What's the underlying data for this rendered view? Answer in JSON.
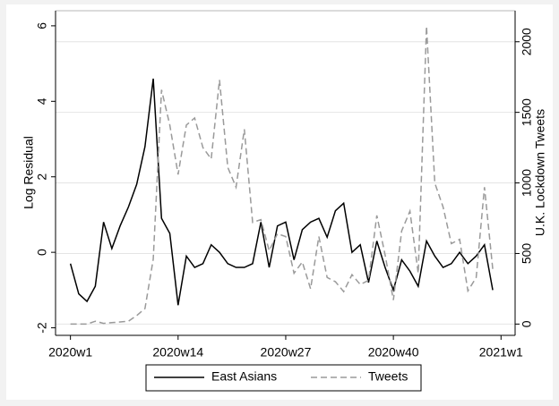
{
  "chart_data": {
    "type": "line",
    "x": [
      1,
      2,
      3,
      4,
      5,
      6,
      7,
      8,
      9,
      10,
      11,
      12,
      13,
      14,
      15,
      16,
      17,
      18,
      19,
      20,
      21,
      22,
      23,
      24,
      25,
      26,
      27,
      28,
      29,
      30,
      31,
      32,
      33,
      34,
      35,
      36,
      37,
      38,
      39,
      40,
      41,
      42,
      43,
      44,
      45,
      46,
      47,
      48,
      49,
      50,
      51,
      52
    ],
    "xlim": [
      -0.8,
      54.7
    ],
    "xticks": [
      {
        "value": 1,
        "label": "2020w1"
      },
      {
        "value": 14,
        "label": "2020w14"
      },
      {
        "value": 27,
        "label": "2020w27"
      },
      {
        "value": 40,
        "label": "2020w40"
      },
      {
        "value": 53,
        "label": "2021w1"
      }
    ],
    "y_label": "Log Residual",
    "y2_label": "U.K. Lockdown Tweets",
    "ylim": [
      -2.2,
      6.4
    ],
    "yticks": [
      -2,
      0,
      2,
      4,
      6
    ],
    "y2lim": [
      -80,
      2220
    ],
    "y2ticks": [
      0,
      500,
      1000,
      1500,
      2000
    ],
    "grid": "y2",
    "legend": "bottom",
    "series": [
      {
        "name": "East Asians",
        "color": "#000000",
        "dash": false,
        "values": [
          -0.3,
          -1.1,
          -1.3,
          -0.9,
          0.8,
          0.1,
          0.7,
          1.2,
          1.8,
          2.8,
          4.6,
          0.9,
          0.5,
          -1.4,
          -0.1,
          -0.4,
          -0.3,
          0.2,
          0.0,
          -0.3,
          -0.4,
          -0.4,
          -0.3,
          0.8,
          -0.4,
          0.7,
          0.8,
          -0.2,
          0.6,
          0.8,
          0.9,
          0.4,
          1.1,
          1.3,
          0.0,
          0.2,
          -0.8,
          0.3,
          -0.4,
          -1.0,
          -0.2,
          -0.5,
          -0.9,
          0.3,
          -0.1,
          -0.4,
          -0.3,
          0.0,
          -0.3,
          -0.1,
          0.2,
          -1.0
        ]
      },
      {
        "name": "Tweets",
        "color": "#9a9a9a",
        "dash": true,
        "axis": "y2",
        "values": [
          0,
          0,
          0,
          20,
          5,
          10,
          15,
          20,
          60,
          110,
          460,
          1660,
          1410,
          1060,
          1410,
          1460,
          1250,
          1170,
          1730,
          1110,
          970,
          1380,
          720,
          740,
          520,
          640,
          620,
          360,
          440,
          250,
          620,
          330,
          300,
          230,
          350,
          280,
          310,
          770,
          490,
          170,
          660,
          800,
          360,
          2110,
          1000,
          830,
          570,
          600,
          235,
          330,
          970,
          390
        ]
      }
    ]
  }
}
